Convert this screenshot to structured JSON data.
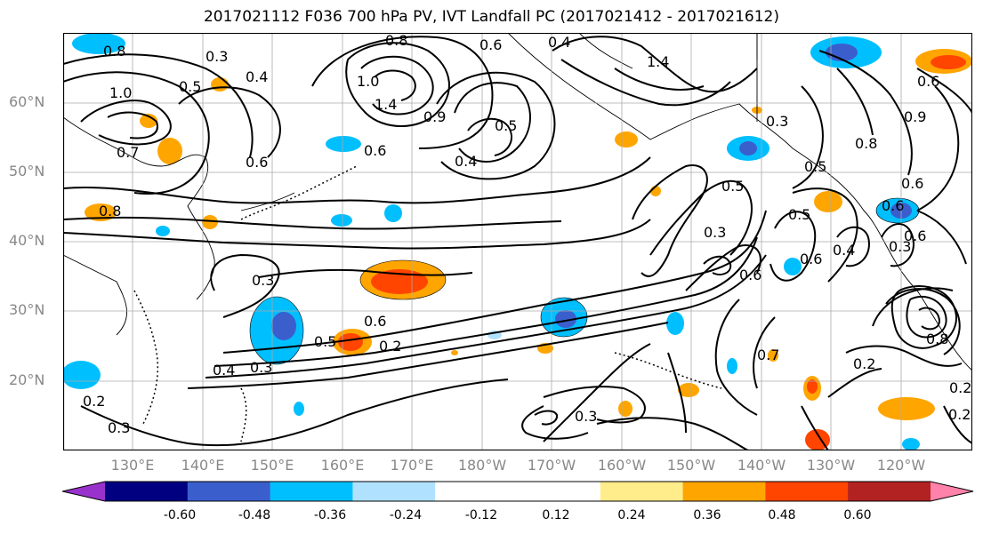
{
  "title": "2017021112 F036 700 hPa PV, IVT Landfall PC (2017021412 - 2017021612)",
  "lat_labels": [
    "60°N",
    "50°N",
    "40°N",
    "30°N",
    "20°N"
  ],
  "lon_labels": [
    "130°E",
    "140°E",
    "150°E",
    "160°E",
    "170°E",
    "180°W",
    "170°W",
    "160°W",
    "150°W",
    "140°W",
    "130°W",
    "120°W"
  ],
  "colorbar": {
    "colors": [
      "#9932cc",
      "#000080",
      "#3a5fcd",
      "#00bfff",
      "#b0e2ff",
      "#ffffff",
      "#ffffff",
      "#ffec8b",
      "#ffa500",
      "#ff4500",
      "#b22222",
      "#ff82ab"
    ],
    "tick_labels": [
      "-0.60",
      "-0.48",
      "-0.36",
      "-0.24",
      "-0.12",
      "0.12",
      "0.24",
      "0.36",
      "0.48",
      "0.60"
    ]
  },
  "contour_labels": [
    "0.8",
    "0.3",
    "0.4",
    "0.5",
    "0.8",
    "1.0",
    "0.6",
    "1.0",
    "1.4",
    "1.4",
    "0.9",
    "0.6",
    "0.5",
    "0.4",
    "0.7",
    "0.6",
    "0.8",
    "0.5",
    "0.9",
    "0.6",
    "0.3",
    "0.5",
    "0.6",
    "0.6",
    "0.3",
    "0.4",
    "0.5",
    "0.6",
    "0.2",
    "0.5",
    "0.4",
    "0.3",
    "0.3",
    "0.7",
    "0.6",
    "0.2",
    "0.8",
    "0.2",
    "0.3",
    "0.2",
    "0.3",
    "0.6",
    "0.8",
    "0.6",
    "0.3",
    "0.4",
    "0.2"
  ]
}
